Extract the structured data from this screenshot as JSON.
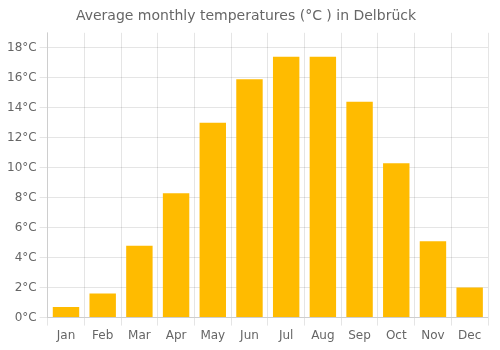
{
  "chart_data": {
    "type": "bar",
    "title": "Average monthly temperatures (°C ) in Delbrück",
    "categories": [
      "Jan",
      "Feb",
      "Mar",
      "Apr",
      "May",
      "Jun",
      "Jul",
      "Aug",
      "Sep",
      "Oct",
      "Nov",
      "Dec"
    ],
    "values": [
      0.7,
      1.6,
      4.8,
      8.3,
      13.0,
      15.9,
      17.4,
      17.4,
      14.4,
      10.3,
      5.1,
      2.0
    ],
    "color": "#FFBB00",
    "ylim": [
      0,
      19
    ],
    "yticks": [
      {
        "value": 0,
        "label": "0°C"
      },
      {
        "value": 2,
        "label": "2°C"
      },
      {
        "value": 4,
        "label": "4°C"
      },
      {
        "value": 6,
        "label": "6°C"
      },
      {
        "value": 8,
        "label": "8°C"
      },
      {
        "value": 10,
        "label": "10°C"
      },
      {
        "value": 12,
        "label": "12°C"
      },
      {
        "value": 14,
        "label": "14°C"
      },
      {
        "value": 16,
        "label": "16°C"
      },
      {
        "value": 18,
        "label": "18°C"
      }
    ],
    "grid": true
  }
}
